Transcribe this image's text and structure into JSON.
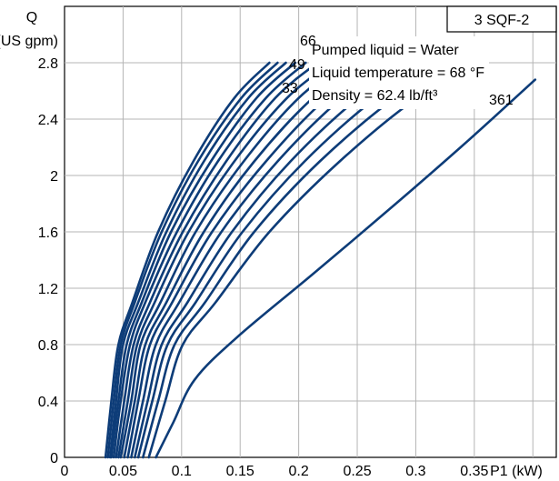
{
  "chart_data": {
    "type": "line",
    "title": "3 SQF-2",
    "xlabel": "P1 (kW)",
    "ylabel_line1": "Q",
    "ylabel_line2": "(US gpm)",
    "xlim": [
      0,
      0.42
    ],
    "ylim": [
      0,
      3.2
    ],
    "x_ticks": [
      {
        "v": 0,
        "label": "0"
      },
      {
        "v": 0.05,
        "label": "0.05"
      },
      {
        "v": 0.1,
        "label": "0.1"
      },
      {
        "v": 0.15,
        "label": "0.15"
      },
      {
        "v": 0.2,
        "label": "0.2"
      },
      {
        "v": 0.25,
        "label": "0.25"
      },
      {
        "v": 0.3,
        "label": "0.3"
      },
      {
        "v": 0.35,
        "label": "0.35"
      }
    ],
    "y_ticks": [
      {
        "v": 0,
        "label": "0"
      },
      {
        "v": 0.4,
        "label": "0.4"
      },
      {
        "v": 0.8,
        "label": "0.8"
      },
      {
        "v": 1.2,
        "label": "1.2"
      },
      {
        "v": 1.6,
        "label": "1.6"
      },
      {
        "v": 2,
        "label": "2"
      },
      {
        "v": 2.4,
        "label": "2.4"
      },
      {
        "v": 2.8,
        "label": "2.8"
      }
    ],
    "grid": true,
    "info_lines": [
      "Pumped liquid = Water",
      "Liquid temperature = 68 °F",
      "Density = 62.4 lb/ft³"
    ],
    "curve_labels": [
      {
        "text": "66",
        "series": 2
      },
      {
        "text": "49",
        "series": 1
      },
      {
        "text": "33",
        "series": 0
      },
      {
        "text": "361",
        "series": 15
      }
    ],
    "series_color": "#0d3c78",
    "series": [
      {
        "x": [
          0.035,
          0.04,
          0.046,
          0.058,
          0.08,
          0.11,
          0.145,
          0.175
        ],
        "y": [
          0,
          0.4,
          0.8,
          1.1,
          1.6,
          2.1,
          2.55,
          2.8
        ]
      },
      {
        "x": [
          0.037,
          0.042,
          0.048,
          0.06,
          0.083,
          0.114,
          0.151,
          0.182
        ],
        "y": [
          0,
          0.4,
          0.8,
          1.1,
          1.6,
          2.1,
          2.55,
          2.8
        ]
      },
      {
        "x": [
          0.039,
          0.044,
          0.05,
          0.063,
          0.087,
          0.119,
          0.157,
          0.189
        ],
        "y": [
          0,
          0.4,
          0.8,
          1.1,
          1.6,
          2.1,
          2.55,
          2.8
        ]
      },
      {
        "x": [
          0.04,
          0.046,
          0.053,
          0.066,
          0.091,
          0.125,
          0.164,
          0.197
        ],
        "y": [
          0,
          0.4,
          0.8,
          1.1,
          1.6,
          2.1,
          2.55,
          2.8
        ]
      },
      {
        "x": [
          0.042,
          0.048,
          0.056,
          0.069,
          0.096,
          0.131,
          0.172,
          0.206
        ],
        "y": [
          0,
          0.4,
          0.8,
          1.1,
          1.6,
          2.1,
          2.55,
          2.8
        ]
      },
      {
        "x": [
          0.044,
          0.051,
          0.059,
          0.073,
          0.101,
          0.138,
          0.18,
          0.216
        ],
        "y": [
          0,
          0.4,
          0.8,
          1.1,
          1.6,
          2.1,
          2.55,
          2.8
        ]
      },
      {
        "x": [
          0.046,
          0.054,
          0.062,
          0.077,
          0.106,
          0.145,
          0.19,
          0.228
        ],
        "y": [
          0,
          0.4,
          0.8,
          1.1,
          1.6,
          2.1,
          2.55,
          2.8
        ]
      },
      {
        "x": [
          0.048,
          0.057,
          0.065,
          0.082,
          0.112,
          0.153,
          0.2,
          0.24
        ],
        "y": [
          0,
          0.4,
          0.8,
          1.1,
          1.6,
          2.1,
          2.55,
          2.8
        ]
      },
      {
        "x": [
          0.051,
          0.06,
          0.069,
          0.087,
          0.119,
          0.162,
          0.212,
          0.254
        ],
        "y": [
          0,
          0.4,
          0.8,
          1.1,
          1.6,
          2.1,
          2.55,
          2.8
        ]
      },
      {
        "x": [
          0.054,
          0.063,
          0.073,
          0.092,
          0.126,
          0.172,
          0.224,
          0.268
        ],
        "y": [
          0,
          0.4,
          0.8,
          1.1,
          1.6,
          2.1,
          2.55,
          2.8
        ]
      },
      {
        "x": [
          0.057,
          0.067,
          0.078,
          0.098,
          0.134,
          0.182,
          0.237,
          0.283
        ],
        "y": [
          0,
          0.4,
          0.8,
          1.1,
          1.6,
          2.1,
          2.55,
          2.8
        ]
      },
      {
        "x": [
          0.06,
          0.071,
          0.083,
          0.105,
          0.143,
          0.193,
          0.251,
          0.299
        ],
        "y": [
          0,
          0.4,
          0.8,
          1.1,
          1.6,
          2.1,
          2.55,
          2.8
        ]
      },
      {
        "x": [
          0.063,
          0.075,
          0.088,
          0.112,
          0.152,
          0.205,
          0.266,
          0.316
        ],
        "y": [
          0,
          0.4,
          0.8,
          1.1,
          1.6,
          2.1,
          2.55,
          2.8
        ]
      },
      {
        "x": [
          0.067,
          0.08,
          0.094,
          0.12,
          0.162,
          0.218,
          0.282,
          0.334
        ],
        "y": [
          0,
          0.4,
          0.8,
          1.1,
          1.6,
          2.1,
          2.55,
          2.8
        ]
      },
      {
        "x": [
          0.072,
          0.086,
          0.101,
          0.129,
          0.175,
          0.235,
          0.301,
          0.355
        ],
        "y": [
          0,
          0.4,
          0.8,
          1.1,
          1.6,
          2.1,
          2.55,
          2.8
        ]
      },
      {
        "x": [
          0.078,
          0.093,
          0.111,
          0.147,
          0.212,
          0.283,
          0.345,
          0.402
        ],
        "y": [
          0,
          0.25,
          0.55,
          0.85,
          1.3,
          1.8,
          2.25,
          2.68
        ]
      }
    ]
  }
}
